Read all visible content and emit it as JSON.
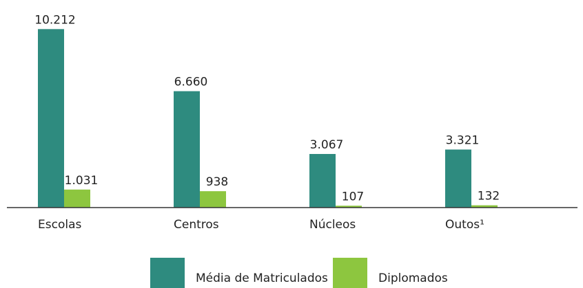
{
  "chart_data": {
    "type": "bar",
    "categories": [
      "Escolas",
      "Centros",
      "Núcleos",
      "Outos¹"
    ],
    "series": [
      {
        "name": "Média de Matriculados",
        "color": "#2e8b7f",
        "values": [
          10212,
          6660,
          3067,
          3321
        ],
        "value_labels": [
          "10.212",
          "6.660",
          "3.067",
          "3.321"
        ]
      },
      {
        "name": "Diplomados",
        "color": "#8dc63f",
        "values": [
          1031,
          938,
          107,
          132
        ],
        "value_labels": [
          "1.031",
          "938",
          "107",
          "132"
        ]
      }
    ],
    "ylim": [
      0,
      10500
    ]
  }
}
